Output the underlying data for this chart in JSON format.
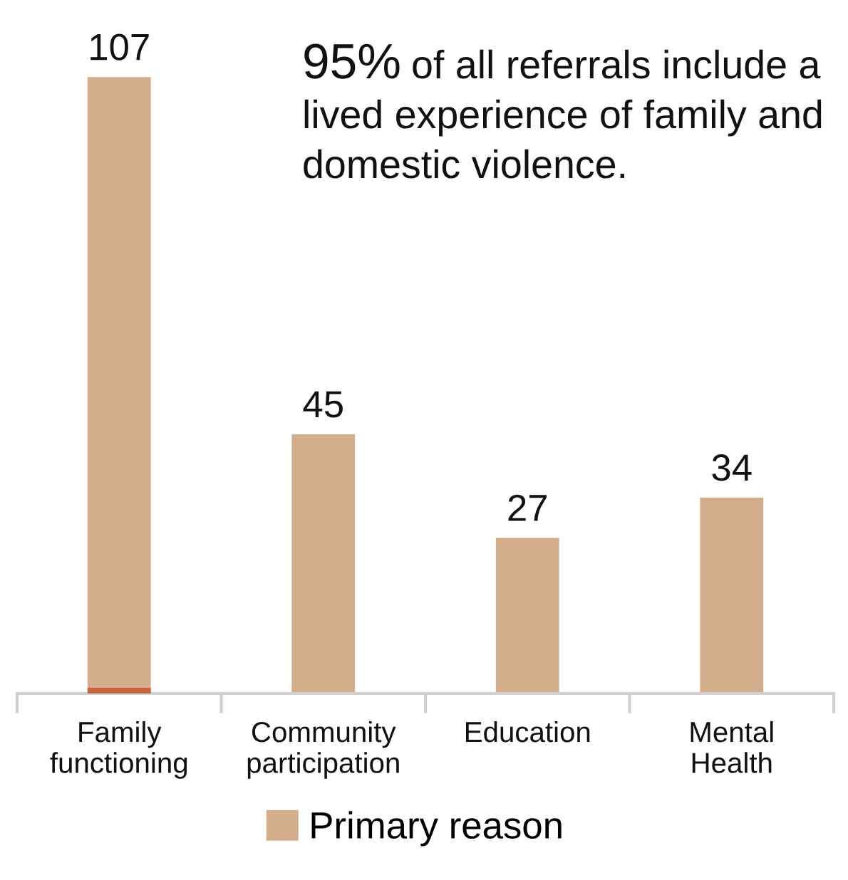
{
  "chart_data": {
    "type": "bar",
    "categories": [
      "Family\nfunctioning",
      "Community\nparticipation",
      "Education",
      "Mental\nHealth"
    ],
    "series": [
      {
        "name": "Primary reason",
        "color": "#d4ae8c",
        "values": [
          107,
          45,
          27,
          34
        ],
        "value_labels": [
          "107",
          "45",
          "27",
          "34"
        ]
      },
      {
        "color": "#c8623f",
        "values": [
          1,
          null,
          null,
          null
        ]
      }
    ],
    "legend": "bottom",
    "grid": false,
    "annotations": [
      "95% of all referrals include a lived experience of family and domestic violence."
    ]
  }
}
